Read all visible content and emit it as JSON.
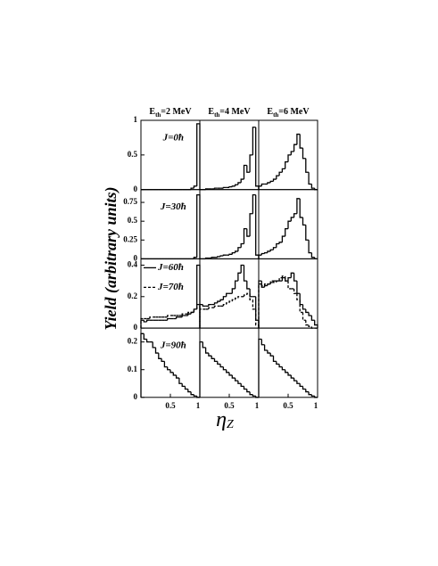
{
  "figure": {
    "column_titles": [
      {
        "symbol": "E",
        "subscript": "th",
        "text": "=2 MeV"
      },
      {
        "symbol": "E",
        "subscript": "th",
        "text": "=4 MeV"
      },
      {
        "symbol": "E",
        "subscript": "th",
        "text": "=6 MeV"
      }
    ],
    "ylabel": "Yield (arbitrary units)",
    "xlabel": {
      "symbol": "η",
      "subscript": "Z"
    }
  },
  "chart_data": [
    {
      "type": "histogram",
      "annotation": "J=0ħ",
      "bins": [
        0,
        0.05,
        0.1,
        0.15,
        0.2,
        0.25,
        0.3,
        0.35,
        0.4,
        0.45,
        0.5,
        0.55,
        0.6,
        0.65,
        0.7,
        0.75,
        0.8,
        0.85,
        0.9,
        0.95,
        1
      ],
      "xlim": [
        0,
        1
      ],
      "ylim": [
        0,
        1
      ],
      "yticks": [
        0,
        0.5,
        1
      ],
      "color": "#000000",
      "values": [
        0,
        0,
        0,
        0,
        0,
        0,
        0,
        0,
        0,
        0,
        0,
        0,
        0,
        0,
        0,
        0,
        0,
        0.02,
        0.05,
        0.95
      ]
    },
    {
      "type": "histogram",
      "bins": [
        0,
        0.05,
        0.1,
        0.15,
        0.2,
        0.25,
        0.3,
        0.35,
        0.4,
        0.45,
        0.5,
        0.55,
        0.6,
        0.65,
        0.7,
        0.75,
        0.8,
        0.85,
        0.9,
        0.95,
        1
      ],
      "xlim": [
        0,
        1
      ],
      "ylim": [
        0,
        1
      ],
      "color": "#000000",
      "values": [
        0,
        0,
        0.01,
        0.01,
        0.01,
        0.02,
        0.02,
        0.02,
        0.03,
        0.03,
        0.04,
        0.05,
        0.07,
        0.1,
        0.15,
        0.35,
        0.25,
        0.5,
        0.9,
        0.05
      ]
    },
    {
      "type": "histogram",
      "bins": [
        0,
        0.05,
        0.1,
        0.15,
        0.2,
        0.25,
        0.3,
        0.35,
        0.4,
        0.45,
        0.5,
        0.55,
        0.6,
        0.65,
        0.7,
        0.75,
        0.8,
        0.85,
        0.9,
        0.95,
        1
      ],
      "xlim": [
        0,
        1
      ],
      "ylim": [
        0,
        1
      ],
      "color": "#000000",
      "values": [
        0.05,
        0.08,
        0.08,
        0.1,
        0.12,
        0.15,
        0.2,
        0.25,
        0.3,
        0.4,
        0.5,
        0.55,
        0.65,
        0.8,
        0.6,
        0.45,
        0.25,
        0.08,
        0.02,
        0
      ]
    },
    {
      "type": "histogram",
      "annotation": "J=30ħ",
      "bins": [
        0,
        0.05,
        0.1,
        0.15,
        0.2,
        0.25,
        0.3,
        0.35,
        0.4,
        0.45,
        0.5,
        0.55,
        0.6,
        0.65,
        0.7,
        0.75,
        0.8,
        0.85,
        0.9,
        0.95,
        1
      ],
      "xlim": [
        0,
        1
      ],
      "ylim": [
        0,
        0.92
      ],
      "yticks": [
        0,
        0.25,
        0.5,
        0.75
      ],
      "color": "#000000",
      "values": [
        0,
        0,
        0,
        0,
        0,
        0,
        0,
        0,
        0,
        0,
        0,
        0,
        0,
        0,
        0,
        0,
        0,
        0,
        0.02,
        0.85
      ]
    },
    {
      "type": "histogram",
      "bins": [
        0,
        0.05,
        0.1,
        0.15,
        0.2,
        0.25,
        0.3,
        0.35,
        0.4,
        0.45,
        0.5,
        0.55,
        0.6,
        0.65,
        0.7,
        0.75,
        0.8,
        0.85,
        0.9,
        0.95,
        1
      ],
      "xlim": [
        0,
        1
      ],
      "ylim": [
        0,
        0.92
      ],
      "color": "#000000",
      "values": [
        0,
        0,
        0.01,
        0.01,
        0.02,
        0.02,
        0.03,
        0.04,
        0.05,
        0.05,
        0.06,
        0.08,
        0.1,
        0.15,
        0.2,
        0.4,
        0.3,
        0.6,
        0.85,
        0.05
      ]
    },
    {
      "type": "histogram",
      "bins": [
        0,
        0.05,
        0.1,
        0.15,
        0.2,
        0.25,
        0.3,
        0.35,
        0.4,
        0.45,
        0.5,
        0.55,
        0.6,
        0.65,
        0.7,
        0.75,
        0.8,
        0.85,
        0.9,
        0.95,
        1
      ],
      "xlim": [
        0,
        1
      ],
      "ylim": [
        0,
        0.92
      ],
      "color": "#000000",
      "values": [
        0.05,
        0.07,
        0.08,
        0.1,
        0.12,
        0.15,
        0.2,
        0.22,
        0.3,
        0.4,
        0.5,
        0.55,
        0.6,
        0.8,
        0.55,
        0.45,
        0.25,
        0.08,
        0.02,
        0
      ]
    },
    {
      "type": "histogram",
      "legend": "upper left",
      "bins": [
        0,
        0.05,
        0.1,
        0.15,
        0.2,
        0.25,
        0.3,
        0.35,
        0.4,
        0.45,
        0.5,
        0.55,
        0.6,
        0.65,
        0.7,
        0.75,
        0.8,
        0.85,
        0.9,
        0.95,
        1
      ],
      "xlim": [
        0,
        1
      ],
      "ylim": [
        0,
        0.44
      ],
      "yticks": [
        0,
        0.2,
        0.4
      ],
      "series": [
        {
          "name": "J=60ħ",
          "color": "#000000",
          "line_style": "solid",
          "values": [
            0.05,
            0.04,
            0.05,
            0.05,
            0.05,
            0.05,
            0.05,
            0.05,
            0.05,
            0.06,
            0.06,
            0.06,
            0.07,
            0.07,
            0.08,
            0.08,
            0.09,
            0.1,
            0.12,
            0.4
          ]
        },
        {
          "name": "J=70ħ",
          "color": "#000000",
          "line_style": "dashed",
          "values": [
            0.06,
            0.06,
            0.06,
            0.07,
            0.07,
            0.07,
            0.07,
            0.07,
            0.07,
            0.08,
            0.08,
            0.08,
            0.08,
            0.08,
            0.09,
            0.09,
            0.1,
            0.1,
            0.12,
            0.15
          ]
        }
      ]
    },
    {
      "type": "histogram",
      "bins": [
        0,
        0.05,
        0.1,
        0.15,
        0.2,
        0.25,
        0.3,
        0.35,
        0.4,
        0.45,
        0.5,
        0.55,
        0.6,
        0.65,
        0.7,
        0.75,
        0.8,
        0.85,
        0.9,
        0.95,
        1
      ],
      "xlim": [
        0,
        1
      ],
      "ylim": [
        0,
        0.44
      ],
      "series": [
        {
          "name": "J=60ħ",
          "color": "#000000",
          "line_style": "solid",
          "values": [
            0.15,
            0.14,
            0.14,
            0.15,
            0.15,
            0.16,
            0.17,
            0.18,
            0.2,
            0.22,
            0.22,
            0.25,
            0.3,
            0.35,
            0.4,
            0.3,
            0.25,
            0.2,
            0.2,
            0.05
          ]
        },
        {
          "name": "J=70ħ",
          "color": "#000000",
          "line_style": "dashed",
          "values": [
            0.12,
            0.12,
            0.12,
            0.13,
            0.13,
            0.14,
            0.14,
            0.14,
            0.15,
            0.16,
            0.17,
            0.18,
            0.19,
            0.2,
            0.2,
            0.21,
            0.22,
            0.18,
            0.12,
            0.02
          ]
        }
      ]
    },
    {
      "type": "histogram",
      "bins": [
        0,
        0.05,
        0.1,
        0.15,
        0.2,
        0.25,
        0.3,
        0.35,
        0.4,
        0.45,
        0.5,
        0.55,
        0.6,
        0.65,
        0.7,
        0.75,
        0.8,
        0.85,
        0.9,
        0.95,
        1
      ],
      "xlim": [
        0,
        1
      ],
      "ylim": [
        0,
        0.44
      ],
      "series": [
        {
          "name": "J=60ħ",
          "color": "#000000",
          "line_style": "solid",
          "values": [
            0.3,
            0.26,
            0.27,
            0.28,
            0.29,
            0.3,
            0.3,
            0.3,
            0.32,
            0.3,
            0.32,
            0.35,
            0.3,
            0.22,
            0.15,
            0.12,
            0.1,
            0.08,
            0.05,
            0.02
          ]
        },
        {
          "name": "J=70ħ",
          "color": "#000000",
          "line_style": "dashed",
          "values": [
            0.28,
            0.27,
            0.28,
            0.28,
            0.3,
            0.29,
            0.3,
            0.32,
            0.33,
            0.3,
            0.25,
            0.25,
            0.22,
            0.18,
            0.1,
            0.05,
            0.02,
            0.01,
            0,
            0
          ]
        }
      ]
    },
    {
      "type": "histogram",
      "annotation": "J=90ħ",
      "bins": [
        0,
        0.05,
        0.1,
        0.15,
        0.2,
        0.25,
        0.3,
        0.35,
        0.4,
        0.45,
        0.5,
        0.55,
        0.6,
        0.65,
        0.7,
        0.75,
        0.8,
        0.85,
        0.9,
        0.95,
        1
      ],
      "xlim": [
        0,
        1
      ],
      "ylim": [
        0,
        0.25
      ],
      "yticks": [
        0,
        0.1,
        0.2
      ],
      "xticks": [
        0.5,
        1
      ],
      "color": "#000000",
      "values": [
        0.23,
        0.21,
        0.2,
        0.2,
        0.18,
        0.16,
        0.14,
        0.13,
        0.11,
        0.1,
        0.09,
        0.08,
        0.07,
        0.05,
        0.04,
        0.03,
        0.02,
        0.01,
        0.005,
        0
      ]
    },
    {
      "type": "histogram",
      "bins": [
        0,
        0.05,
        0.1,
        0.15,
        0.2,
        0.25,
        0.3,
        0.35,
        0.4,
        0.45,
        0.5,
        0.55,
        0.6,
        0.65,
        0.7,
        0.75,
        0.8,
        0.85,
        0.9,
        0.95,
        1
      ],
      "xlim": [
        0,
        1
      ],
      "ylim": [
        0,
        0.25
      ],
      "xticks": [
        0.5,
        1
      ],
      "color": "#000000",
      "values": [
        0.2,
        0.18,
        0.16,
        0.15,
        0.14,
        0.13,
        0.12,
        0.11,
        0.1,
        0.09,
        0.08,
        0.07,
        0.06,
        0.05,
        0.04,
        0.03,
        0.02,
        0.01,
        0.005,
        0
      ]
    },
    {
      "type": "histogram",
      "bins": [
        0,
        0.05,
        0.1,
        0.15,
        0.2,
        0.25,
        0.3,
        0.35,
        0.4,
        0.45,
        0.5,
        0.55,
        0.6,
        0.65,
        0.7,
        0.75,
        0.8,
        0.85,
        0.9,
        0.95,
        1
      ],
      "xlim": [
        0,
        1
      ],
      "ylim": [
        0,
        0.25
      ],
      "xticks": [
        0.5,
        1
      ],
      "color": "#000000",
      "values": [
        0.21,
        0.19,
        0.17,
        0.16,
        0.15,
        0.13,
        0.12,
        0.11,
        0.1,
        0.09,
        0.08,
        0.07,
        0.06,
        0.05,
        0.04,
        0.03,
        0.02,
        0.01,
        0.005,
        0
      ]
    }
  ]
}
